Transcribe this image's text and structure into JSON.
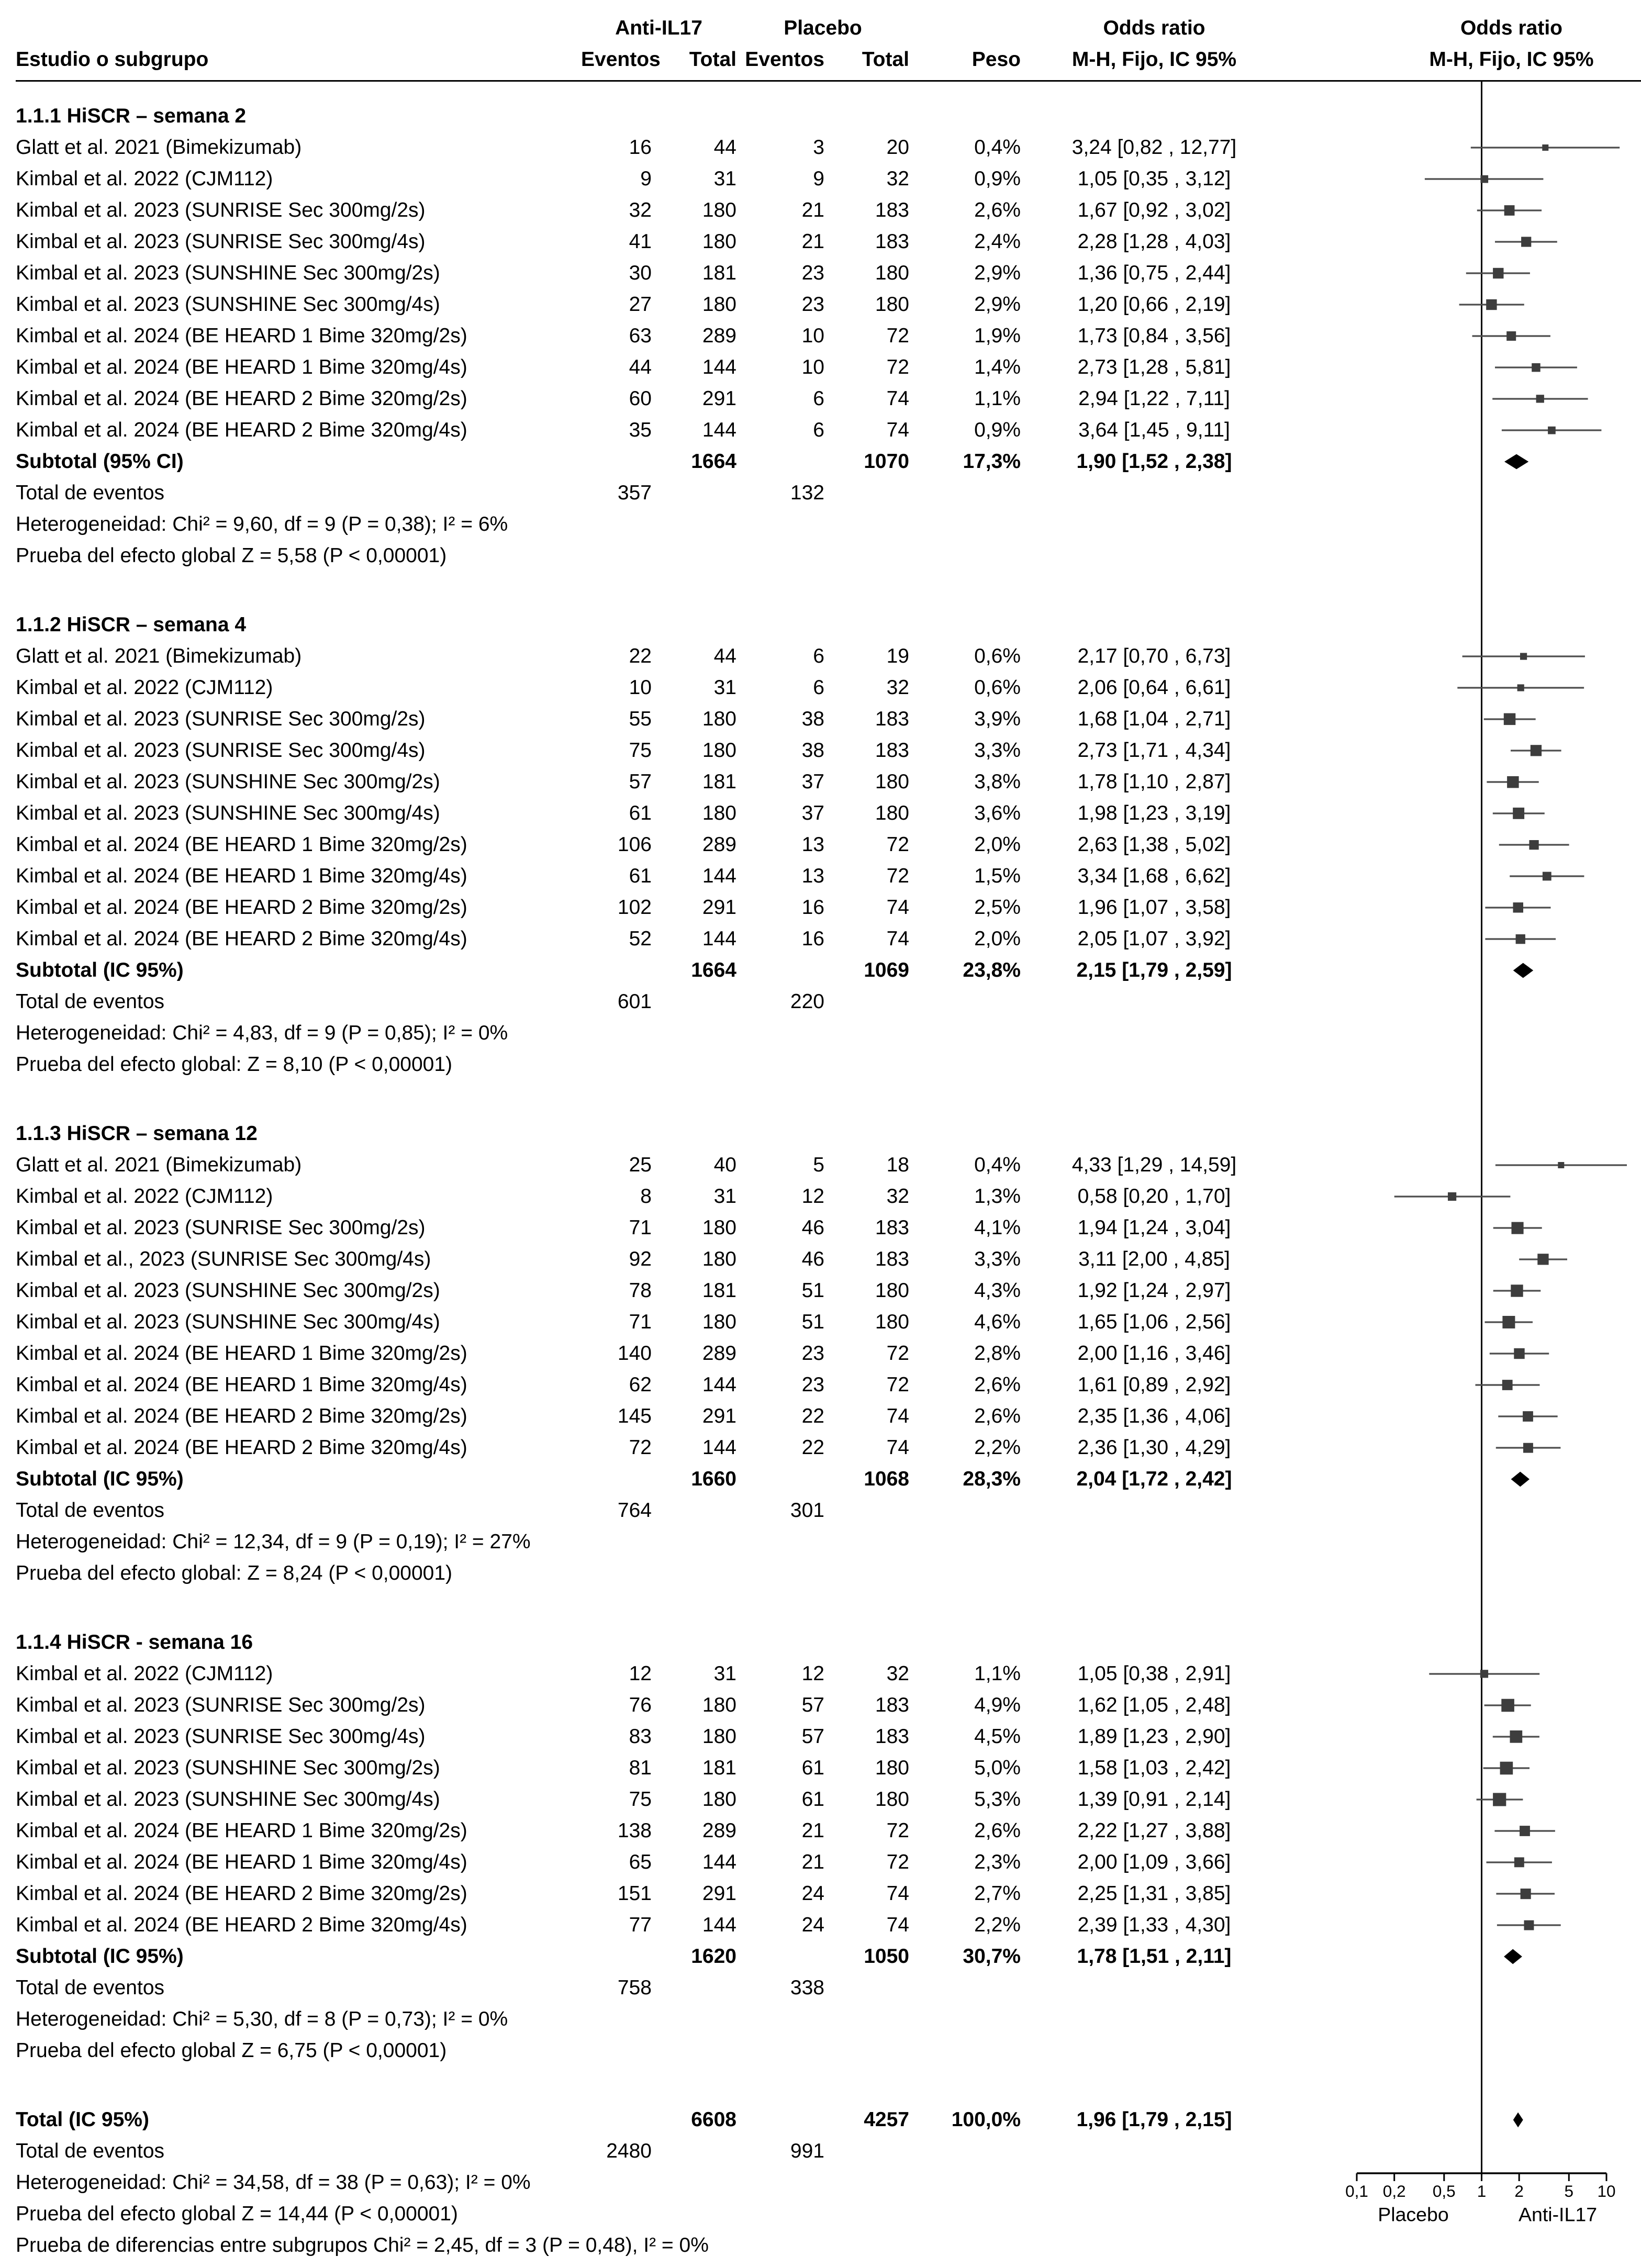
{
  "header": {
    "study": "Estudio o subgrupo",
    "group1": "Anti-IL17",
    "group2": "Placebo",
    "events": "Eventos",
    "total": "Total",
    "weight": "Peso",
    "or_title": "Odds ratio",
    "or_sub": "M-H, Fijo, IC 95%",
    "plot_title": "Odds ratio",
    "plot_sub": "M-H, Fijo, IC 95%"
  },
  "chart_data": {
    "type": "forest",
    "effect_measure": "Odds ratio (M-H, Fijo, IC 95%)",
    "x_scale": "log",
    "axis": {
      "ticks": [
        0.1,
        0.2,
        0.5,
        1,
        2,
        5,
        10
      ],
      "tick_labels": [
        "0,1",
        "0,2",
        "0,5",
        "1",
        "2",
        "5",
        "10"
      ],
      "left_label": "Placebo",
      "right_label": "Anti-IL17"
    },
    "sections": [
      {
        "title": "1.1.1 HiSCR – semana 2",
        "studies": [
          {
            "label": "Glatt et al. 2021 (Bimekizumab)",
            "e1": 16,
            "t1": 44,
            "e2": 3,
            "t2": 20,
            "weight": "0,4%",
            "or_text": "3,24 [0,82 , 12,77]",
            "or": 3.24,
            "lo": 0.82,
            "hi": 12.77
          },
          {
            "label": "Kimbal et al. 2022 (CJM112)",
            "e1": 9,
            "t1": 31,
            "e2": 9,
            "t2": 32,
            "weight": "0,9%",
            "or_text": "1,05 [0,35 , 3,12]",
            "or": 1.05,
            "lo": 0.35,
            "hi": 3.12
          },
          {
            "label": "Kimbal et al. 2023 (SUNRISE Sec 300mg/2s)",
            "e1": 32,
            "t1": 180,
            "e2": 21,
            "t2": 183,
            "weight": "2,6%",
            "or_text": "1,67 [0,92 , 3,02]",
            "or": 1.67,
            "lo": 0.92,
            "hi": 3.02
          },
          {
            "label": "Kimbal et al. 2023 (SUNRISE Sec 300mg/4s)",
            "e1": 41,
            "t1": 180,
            "e2": 21,
            "t2": 183,
            "weight": "2,4%",
            "or_text": "2,28 [1,28 , 4,03]",
            "or": 2.28,
            "lo": 1.28,
            "hi": 4.03
          },
          {
            "label": "Kimbal et al. 2023 (SUNSHINE Sec 300mg/2s)",
            "e1": 30,
            "t1": 181,
            "e2": 23,
            "t2": 180,
            "weight": "2,9%",
            "or_text": "1,36 [0,75 , 2,44]",
            "or": 1.36,
            "lo": 0.75,
            "hi": 2.44
          },
          {
            "label": "Kimbal et al. 2023 (SUNSHINE Sec 300mg/4s)",
            "e1": 27,
            "t1": 180,
            "e2": 23,
            "t2": 180,
            "weight": "2,9%",
            "or_text": "1,20 [0,66 , 2,19]",
            "or": 1.2,
            "lo": 0.66,
            "hi": 2.19
          },
          {
            "label": "Kimbal et al. 2024 (BE HEARD 1 Bime 320mg/2s)",
            "e1": 63,
            "t1": 289,
            "e2": 10,
            "t2": 72,
            "weight": "1,9%",
            "or_text": "1,73 [0,84 , 3,56]",
            "or": 1.73,
            "lo": 0.84,
            "hi": 3.56
          },
          {
            "label": "Kimbal et al. 2024 (BE HEARD 1 Bime 320mg/4s)",
            "e1": 44,
            "t1": 144,
            "e2": 10,
            "t2": 72,
            "weight": "1,4%",
            "or_text": "2,73 [1,28 , 5,81]",
            "or": 2.73,
            "lo": 1.28,
            "hi": 5.81
          },
          {
            "label": "Kimbal et al. 2024 (BE HEARD 2 Bime 320mg/2s)",
            "e1": 60,
            "t1": 291,
            "e2": 6,
            "t2": 74,
            "weight": "1,1%",
            "or_text": "2,94 [1,22 , 7,11]",
            "or": 2.94,
            "lo": 1.22,
            "hi": 7.11
          },
          {
            "label": "Kimbal et al. 2024 (BE HEARD 2 Bime 320mg/4s)",
            "e1": 35,
            "t1": 144,
            "e2": 6,
            "t2": 74,
            "weight": "0,9%",
            "or_text": "3,64 [1,45 , 9,11]",
            "or": 3.64,
            "lo": 1.45,
            "hi": 9.11
          }
        ],
        "subtotal": {
          "label": "Subtotal (95% CI)",
          "t1": 1664,
          "t2": 1070,
          "weight": "17,3%",
          "or_text": "1,90 [1,52 , 2,38]",
          "or": 1.9,
          "lo": 1.52,
          "hi": 2.38
        },
        "total_events": {
          "label": "Total de eventos",
          "e1": 357,
          "e2": 132
        },
        "heterogeneity": "Heterogeneidad: Chi² = 9,60, df = 9 (P = 0,38); I² = 6%",
        "overall_effect": "Prueba del efecto global Z = 5,58 (P < 0,00001)"
      },
      {
        "title": "1.1.2 HiSCR – semana 4",
        "studies": [
          {
            "label": "Glatt et al. 2021 (Bimekizumab)",
            "e1": 22,
            "t1": 44,
            "e2": 6,
            "t2": 19,
            "weight": "0,6%",
            "or_text": "2,17 [0,70 , 6,73]",
            "or": 2.17,
            "lo": 0.7,
            "hi": 6.73
          },
          {
            "label": "Kimbal et al. 2022 (CJM112)",
            "e1": 10,
            "t1": 31,
            "e2": 6,
            "t2": 32,
            "weight": "0,6%",
            "or_text": "2,06 [0,64 , 6,61]",
            "or": 2.06,
            "lo": 0.64,
            "hi": 6.61
          },
          {
            "label": "Kimbal et al. 2023 (SUNRISE Sec 300mg/2s)",
            "e1": 55,
            "t1": 180,
            "e2": 38,
            "t2": 183,
            "weight": "3,9%",
            "or_text": "1,68 [1,04 , 2,71]",
            "or": 1.68,
            "lo": 1.04,
            "hi": 2.71
          },
          {
            "label": "Kimbal et al. 2023 (SUNRISE Sec 300mg/4s)",
            "e1": 75,
            "t1": 180,
            "e2": 38,
            "t2": 183,
            "weight": "3,3%",
            "or_text": "2,73 [1,71 , 4,34]",
            "or": 2.73,
            "lo": 1.71,
            "hi": 4.34
          },
          {
            "label": "Kimbal et al. 2023 (SUNSHINE Sec 300mg/2s)",
            "e1": 57,
            "t1": 181,
            "e2": 37,
            "t2": 180,
            "weight": "3,8%",
            "or_text": "1,78 [1,10 , 2,87]",
            "or": 1.78,
            "lo": 1.1,
            "hi": 2.87
          },
          {
            "label": "Kimbal et al. 2023 (SUNSHINE Sec 300mg/4s)",
            "e1": 61,
            "t1": 180,
            "e2": 37,
            "t2": 180,
            "weight": "3,6%",
            "or_text": "1,98 [1,23 , 3,19]",
            "or": 1.98,
            "lo": 1.23,
            "hi": 3.19
          },
          {
            "label": "Kimbal et al. 2024 (BE HEARD 1 Bime 320mg/2s)",
            "e1": 106,
            "t1": 289,
            "e2": 13,
            "t2": 72,
            "weight": "2,0%",
            "or_text": "2,63 [1,38 , 5,02]",
            "or": 2.63,
            "lo": 1.38,
            "hi": 5.02
          },
          {
            "label": "Kimbal et al. 2024 (BE HEARD 1 Bime 320mg/4s)",
            "e1": 61,
            "t1": 144,
            "e2": 13,
            "t2": 72,
            "weight": "1,5%",
            "or_text": "3,34 [1,68 , 6,62]",
            "or": 3.34,
            "lo": 1.68,
            "hi": 6.62
          },
          {
            "label": "Kimbal et al. 2024 (BE HEARD 2 Bime 320mg/2s)",
            "e1": 102,
            "t1": 291,
            "e2": 16,
            "t2": 74,
            "weight": "2,5%",
            "or_text": "1,96 [1,07 , 3,58]",
            "or": 1.96,
            "lo": 1.07,
            "hi": 3.58
          },
          {
            "label": "Kimbal et al. 2024 (BE HEARD 2 Bime 320mg/4s)",
            "e1": 52,
            "t1": 144,
            "e2": 16,
            "t2": 74,
            "weight": "2,0%",
            "or_text": "2,05 [1,07 , 3,92]",
            "or": 2.05,
            "lo": 1.07,
            "hi": 3.92
          }
        ],
        "subtotal": {
          "label": "Subtotal (IC 95%)",
          "t1": 1664,
          "t2": 1069,
          "weight": "23,8%",
          "or_text": "2,15 [1,79 , 2,59]",
          "or": 2.15,
          "lo": 1.79,
          "hi": 2.59
        },
        "total_events": {
          "label": "Total de eventos",
          "e1": 601,
          "e2": 220
        },
        "heterogeneity": "Heterogeneidad: Chi² = 4,83, df = 9 (P = 0,85); I² = 0%",
        "overall_effect": "Prueba del efecto global: Z = 8,10 (P < 0,00001)"
      },
      {
        "title": "1.1.3 HiSCR – semana 12",
        "studies": [
          {
            "label": "Glatt et al. 2021 (Bimekizumab)",
            "e1": 25,
            "t1": 40,
            "e2": 5,
            "t2": 18,
            "weight": "0,4%",
            "or_text": "4,33 [1,29 , 14,59]",
            "or": 4.33,
            "lo": 1.29,
            "hi": 14.59
          },
          {
            "label": "Kimbal et al. 2022 (CJM112)",
            "e1": 8,
            "t1": 31,
            "e2": 12,
            "t2": 32,
            "weight": "1,3%",
            "or_text": "0,58 [0,20 , 1,70]",
            "or": 0.58,
            "lo": 0.2,
            "hi": 1.7
          },
          {
            "label": "Kimbal et al. 2023 (SUNRISE Sec 300mg/2s)",
            "e1": 71,
            "t1": 180,
            "e2": 46,
            "t2": 183,
            "weight": "4,1%",
            "or_text": "1,94 [1,24 , 3,04]",
            "or": 1.94,
            "lo": 1.24,
            "hi": 3.04
          },
          {
            "label": "Kimbal et al., 2023 (SUNRISE Sec 300mg/4s)",
            "e1": 92,
            "t1": 180,
            "e2": 46,
            "t2": 183,
            "weight": "3,3%",
            "or_text": "3,11 [2,00 , 4,85]",
            "or": 3.11,
            "lo": 2.0,
            "hi": 4.85
          },
          {
            "label": "Kimbal et al. 2023 (SUNSHINE Sec 300mg/2s)",
            "e1": 78,
            "t1": 181,
            "e2": 51,
            "t2": 180,
            "weight": "4,3%",
            "or_text": "1,92 [1,24 , 2,97]",
            "or": 1.92,
            "lo": 1.24,
            "hi": 2.97
          },
          {
            "label": "Kimbal et al. 2023 (SUNSHINE Sec 300mg/4s)",
            "e1": 71,
            "t1": 180,
            "e2": 51,
            "t2": 180,
            "weight": "4,6%",
            "or_text": "1,65 [1,06 , 2,56]",
            "or": 1.65,
            "lo": 1.06,
            "hi": 2.56
          },
          {
            "label": "Kimbal et al. 2024 (BE HEARD 1 Bime 320mg/2s)",
            "e1": 140,
            "t1": 289,
            "e2": 23,
            "t2": 72,
            "weight": "2,8%",
            "or_text": "2,00 [1,16 , 3,46]",
            "or": 2.0,
            "lo": 1.16,
            "hi": 3.46
          },
          {
            "label": "Kimbal et al. 2024 (BE HEARD 1 Bime 320mg/4s)",
            "e1": 62,
            "t1": 144,
            "e2": 23,
            "t2": 72,
            "weight": "2,6%",
            "or_text": "1,61 [0,89 , 2,92]",
            "or": 1.61,
            "lo": 0.89,
            "hi": 2.92
          },
          {
            "label": "Kimbal et al. 2024 (BE HEARD 2 Bime 320mg/2s)",
            "e1": 145,
            "t1": 291,
            "e2": 22,
            "t2": 74,
            "weight": "2,6%",
            "or_text": "2,35 [1,36 , 4,06]",
            "or": 2.35,
            "lo": 1.36,
            "hi": 4.06
          },
          {
            "label": "Kimbal et al. 2024 (BE HEARD 2 Bime 320mg/4s)",
            "e1": 72,
            "t1": 144,
            "e2": 22,
            "t2": 74,
            "weight": "2,2%",
            "or_text": "2,36 [1,30 , 4,29]",
            "or": 2.36,
            "lo": 1.3,
            "hi": 4.29
          }
        ],
        "subtotal": {
          "label": "Subtotal (IC 95%)",
          "t1": 1660,
          "t2": 1068,
          "weight": "28,3%",
          "or_text": "2,04 [1,72 , 2,42]",
          "or": 2.04,
          "lo": 1.72,
          "hi": 2.42
        },
        "total_events": {
          "label": "Total de eventos",
          "e1": 764,
          "e2": 301
        },
        "heterogeneity": "Heterogeneidad: Chi² = 12,34, df = 9 (P = 0,19); I² = 27%",
        "overall_effect": "Prueba del efecto global: Z = 8,24 (P < 0,00001)"
      },
      {
        "title": "1.1.4 HiSCR - semana 16",
        "studies": [
          {
            "label": "Kimbal et al. 2022 (CJM112)",
            "e1": 12,
            "t1": 31,
            "e2": 12,
            "t2": 32,
            "weight": "1,1%",
            "or_text": "1,05 [0,38 , 2,91]",
            "or": 1.05,
            "lo": 0.38,
            "hi": 2.91
          },
          {
            "label": "Kimbal et al. 2023 (SUNRISE Sec 300mg/2s)",
            "e1": 76,
            "t1": 180,
            "e2": 57,
            "t2": 183,
            "weight": "4,9%",
            "or_text": "1,62 [1,05 , 2,48]",
            "or": 1.62,
            "lo": 1.05,
            "hi": 2.48
          },
          {
            "label": "Kimbal et al. 2023 (SUNRISE Sec 300mg/4s)",
            "e1": 83,
            "t1": 180,
            "e2": 57,
            "t2": 183,
            "weight": "4,5%",
            "or_text": "1,89 [1,23 , 2,90]",
            "or": 1.89,
            "lo": 1.23,
            "hi": 2.9
          },
          {
            "label": "Kimbal et al. 2023 (SUNSHINE Sec 300mg/2s)",
            "e1": 81,
            "t1": 181,
            "e2": 61,
            "t2": 180,
            "weight": "5,0%",
            "or_text": "1,58 [1,03 , 2,42]",
            "or": 1.58,
            "lo": 1.03,
            "hi": 2.42
          },
          {
            "label": "Kimbal et al. 2023 (SUNSHINE Sec 300mg/4s)",
            "e1": 75,
            "t1": 180,
            "e2": 61,
            "t2": 180,
            "weight": "5,3%",
            "or_text": "1,39 [0,91 , 2,14]",
            "or": 1.39,
            "lo": 0.91,
            "hi": 2.14
          },
          {
            "label": "Kimbal et al. 2024 (BE HEARD 1 Bime 320mg/2s)",
            "e1": 138,
            "t1": 289,
            "e2": 21,
            "t2": 72,
            "weight": "2,6%",
            "or_text": "2,22 [1,27 , 3,88]",
            "or": 2.22,
            "lo": 1.27,
            "hi": 3.88
          },
          {
            "label": "Kimbal et al. 2024 (BE HEARD 1 Bime 320mg/4s)",
            "e1": 65,
            "t1": 144,
            "e2": 21,
            "t2": 72,
            "weight": "2,3%",
            "or_text": "2,00 [1,09 , 3,66]",
            "or": 2.0,
            "lo": 1.09,
            "hi": 3.66
          },
          {
            "label": "Kimbal et al. 2024 (BE HEARD 2 Bime 320mg/2s)",
            "e1": 151,
            "t1": 291,
            "e2": 24,
            "t2": 74,
            "weight": "2,7%",
            "or_text": "2,25 [1,31 , 3,85]",
            "or": 2.25,
            "lo": 1.31,
            "hi": 3.85
          },
          {
            "label": "Kimbal et al. 2024 (BE HEARD 2 Bime 320mg/4s)",
            "e1": 77,
            "t1": 144,
            "e2": 24,
            "t2": 74,
            "weight": "2,2%",
            "or_text": "2,39 [1,33 , 4,30]",
            "or": 2.39,
            "lo": 1.33,
            "hi": 4.3
          }
        ],
        "subtotal": {
          "label": "Subtotal (IC 95%)",
          "t1": 1620,
          "t2": 1050,
          "weight": "30,7%",
          "or_text": "1,78 [1,51 , 2,11]",
          "or": 1.78,
          "lo": 1.51,
          "hi": 2.11
        },
        "total_events": {
          "label": "Total de eventos",
          "e1": 758,
          "e2": 338
        },
        "heterogeneity": "Heterogeneidad: Chi² = 5,30, df = 8 (P = 0,73); I² = 0%",
        "overall_effect": "Prueba del efecto global Z = 6,75 (P < 0,00001)"
      }
    ],
    "total_section": {
      "total": {
        "label": "Total (IC 95%)",
        "t1": 6608,
        "t2": 4257,
        "weight": "100,0%",
        "or_text": "1,96 [1,79 , 2,15]",
        "or": 1.96,
        "lo": 1.79,
        "hi": 2.15
      },
      "total_events": {
        "label": "Total de eventos",
        "e1": 2480,
        "e2": 991
      },
      "heterogeneity": "Heterogeneidad: Chi² = 34,58, df = 38 (P = 0,63); I² = 0%",
      "overall_effect": "Prueba del efecto global Z = 14,44 (P < 0,00001)",
      "subgroup_diff": "Prueba de diferencias entre subgrupos Chi² = 2,45, df = 3 (P = 0,48), I² = 0%"
    }
  }
}
